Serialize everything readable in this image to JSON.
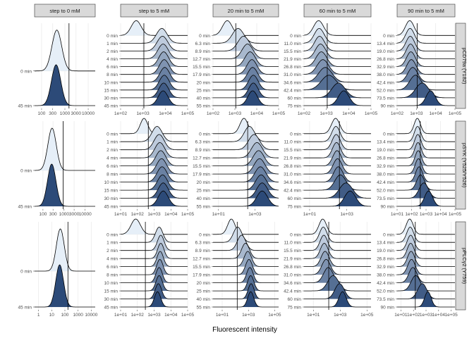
{
  "chart_data": {
    "type": "ridgeline",
    "xlabel": "Fluorescent intensity",
    "x_scale": "log10",
    "columns": [
      {
        "id": "c0",
        "title": "step to 0 mM",
        "times": [
          "0 min",
          "45 min"
        ]
      },
      {
        "id": "c1",
        "title": "step to 5 mM",
        "times": [
          "0 min",
          "1 min",
          "2 min",
          "4 min",
          "6 min",
          "8 min",
          "10 min",
          "15 min",
          "30 min",
          "45 min"
        ]
      },
      {
        "id": "c2",
        "title": "20 min to 5 mM",
        "times": [
          "0 min",
          "6.3 min",
          "8.9 min",
          "12.7 min",
          "15.5 min",
          "17.9 min",
          "20 min",
          "25 min",
          "40 min",
          "55 min"
        ]
      },
      {
        "id": "c3",
        "title": "60 min to 5 mM",
        "times": [
          "0 min",
          "11.0 min",
          "15.5 min",
          "21.9 min",
          "26.8 min",
          "31.0 min",
          "34.6 min",
          "42.4 min",
          "60 min",
          "75 min"
        ]
      },
      {
        "id": "c4",
        "title": "90 min to 5 mM",
        "times": [
          "0 min",
          "13.4 min",
          "19.0 min",
          "26.8 min",
          "32.9 min",
          "38.0 min",
          "42.4 min",
          "52.0 min",
          "73.5 min",
          "90 min"
        ]
      }
    ],
    "rows": [
      {
        "strip": "pCD79a (Y182)",
        "panels": [
          {
            "xlim": [
              50,
              20000
            ],
            "ticks": [
              100,
              300,
              1000,
              3000,
              10000
            ],
            "tick_labels": [
              "100",
              "300",
              "1000",
              "3000",
              "10000"
            ],
            "vline": 1500,
            "peaks": [
              {
                "m": 450,
                "s": 0.21
              },
              {
                "m": 420,
                "s": 0.2
              }
            ]
          },
          {
            "xlim": [
              100,
              100000
            ],
            "ticks": [
              100,
              1000,
              10000,
              100000
            ],
            "tick_labels": [
              "1e+02",
              "1e+03",
              "1e+04",
              "1e+05"
            ],
            "vline": 1100,
            "peaks": [
              {
                "m": 500,
                "s": 0.22
              },
              {
                "m": 7000,
                "s": 0.24
              },
              {
                "m": 7500,
                "s": 0.24
              },
              {
                "m": 8000,
                "s": 0.23
              },
              {
                "m": 8500,
                "s": 0.22
              },
              {
                "m": 9000,
                "s": 0.22
              },
              {
                "m": 9500,
                "s": 0.22
              },
              {
                "m": 9000,
                "s": 0.22
              },
              {
                "m": 8500,
                "s": 0.22
              },
              {
                "m": 8000,
                "s": 0.22
              }
            ]
          },
          {
            "xlim": [
              100,
              100000
            ],
            "ticks": [
              100,
              1000,
              10000,
              100000
            ],
            "tick_labels": [
              "1e+02",
              "1e+03",
              "1e+04",
              "1e+05"
            ],
            "vline": 1100,
            "peaks": [
              {
                "m": 450,
                "s": 0.22
              },
              {
                "m": 1400,
                "s": 0.26
              },
              {
                "m": 2500,
                "s": 0.26
              },
              {
                "m": 3800,
                "s": 0.25
              },
              {
                "m": 5000,
                "s": 0.24
              },
              {
                "m": 6000,
                "s": 0.23
              },
              {
                "m": 6500,
                "s": 0.23
              },
              {
                "m": 7000,
                "s": 0.22
              },
              {
                "m": 7000,
                "s": 0.22
              },
              {
                "m": 6500,
                "s": 0.22
              }
            ]
          },
          {
            "xlim": [
              100,
              100000
            ],
            "ticks": [
              100,
              1000,
              10000,
              100000
            ],
            "tick_labels": [
              "1e+02",
              "1e+03",
              "1e+04",
              "1e+05"
            ],
            "vline": 1100,
            "peaks": [
              {
                "m": 450,
                "s": 0.22
              },
              {
                "m": 480,
                "s": 0.22
              },
              {
                "m": 500,
                "s": 0.22
              },
              {
                "m": 550,
                "s": 0.23
              },
              {
                "m": 600,
                "s": 0.24
              },
              {
                "m": 700,
                "s": 0.26
              },
              {
                "m": 900,
                "s": 0.3
              },
              {
                "m": 1300,
                "s": 0.34
              },
              {
                "m": 3500,
                "s": 0.3
              },
              {
                "m": 6000,
                "s": 0.24
              }
            ]
          },
          {
            "xlim": [
              100,
              100000
            ],
            "ticks": [
              100,
              1000,
              10000,
              100000
            ],
            "tick_labels": [
              "1e+02",
              "1e+03",
              "1e+04",
              "1e+05"
            ],
            "vline": 1100,
            "peaks": [
              {
                "m": 450,
                "s": 0.22
              },
              {
                "m": 470,
                "s": 0.22
              },
              {
                "m": 480,
                "s": 0.22
              },
              {
                "m": 500,
                "s": 0.22
              },
              {
                "m": 520,
                "s": 0.23
              },
              {
                "m": 550,
                "s": 0.24
              },
              {
                "m": 650,
                "s": 0.26
              },
              {
                "m": 900,
                "s": 0.3
              },
              {
                "m": 2000,
                "s": 0.34
              },
              {
                "m": 5500,
                "s": 0.24
              }
            ]
          }
        ]
      },
      {
        "strip": "pSYK (Y525/Y526)",
        "panels": [
          {
            "xlim": [
              40,
              30000
            ],
            "ticks": [
              100,
              300,
              1000,
              3000,
              10000
            ],
            "tick_labels": [
              "100",
              "300",
              "1000",
              "3000",
              "10000"
            ],
            "vline": 900,
            "peaks": [
              {
                "m": 270,
                "s": 0.2
              },
              {
                "m": 260,
                "s": 0.2
              }
            ]
          },
          {
            "xlim": [
              10,
              100000
            ],
            "ticks": [
              10,
              100,
              1000,
              10000,
              100000
            ],
            "tick_labels": [
              "1e+01",
              "1e+02",
              "1e+03",
              "1e+04",
              "1e+05"
            ],
            "vline": 450,
            "peaks": [
              {
                "m": 250,
                "s": 0.22
              },
              {
                "m": 1500,
                "s": 0.3
              },
              {
                "m": 2000,
                "s": 0.3
              },
              {
                "m": 2200,
                "s": 0.3
              },
              {
                "m": 2500,
                "s": 0.3
              },
              {
                "m": 2800,
                "s": 0.3
              },
              {
                "m": 3000,
                "s": 0.3
              },
              {
                "m": 3200,
                "s": 0.3
              },
              {
                "m": 3500,
                "s": 0.3
              },
              {
                "m": 3500,
                "s": 0.3
              }
            ]
          },
          {
            "xlim": [
              5,
              20000
            ],
            "ticks": [
              10,
              1000
            ],
            "tick_labels": [
              "1e+01",
              "1e+03"
            ],
            "vline": 400,
            "peaks": [
              {
                "m": 250,
                "s": 0.22
              },
              {
                "m": 500,
                "s": 0.28
              },
              {
                "m": 900,
                "s": 0.3
              },
              {
                "m": 1300,
                "s": 0.3
              },
              {
                "m": 1600,
                "s": 0.3
              },
              {
                "m": 1800,
                "s": 0.3
              },
              {
                "m": 2000,
                "s": 0.3
              },
              {
                "m": 2200,
                "s": 0.3
              },
              {
                "m": 2500,
                "s": 0.3
              },
              {
                "m": 2500,
                "s": 0.3
              }
            ]
          },
          {
            "xlim": [
              5,
              20000
            ],
            "ticks": [
              10,
              1000
            ],
            "tick_labels": [
              "1e+01",
              "1e+03"
            ],
            "vline": 400,
            "peaks": [
              {
                "m": 250,
                "s": 0.22
              },
              {
                "m": 260,
                "s": 0.22
              },
              {
                "m": 270,
                "s": 0.22
              },
              {
                "m": 280,
                "s": 0.22
              },
              {
                "m": 300,
                "s": 0.23
              },
              {
                "m": 320,
                "s": 0.24
              },
              {
                "m": 350,
                "s": 0.25
              },
              {
                "m": 450,
                "s": 0.3
              },
              {
                "m": 900,
                "s": 0.35
              },
              {
                "m": 1500,
                "s": 0.3
              }
            ]
          },
          {
            "xlim": [
              10,
              100000
            ],
            "ticks": [
              10,
              100,
              1000,
              10000,
              100000
            ],
            "tick_labels": [
              "1e+01",
              "1e+02",
              "1e+03",
              "1e+04",
              "1e+05"
            ],
            "vline": 400,
            "peaks": [
              {
                "m": 250,
                "s": 0.22
              },
              {
                "m": 260,
                "s": 0.22
              },
              {
                "m": 270,
                "s": 0.22
              },
              {
                "m": 280,
                "s": 0.22
              },
              {
                "m": 290,
                "s": 0.22
              },
              {
                "m": 300,
                "s": 0.23
              },
              {
                "m": 330,
                "s": 0.24
              },
              {
                "m": 420,
                "s": 0.27
              },
              {
                "m": 700,
                "s": 0.32
              },
              {
                "m": 1500,
                "s": 0.28
              }
            ]
          }
        ]
      },
      {
        "strip": "pPLCγ2 (Y759)",
        "panels": [
          {
            "xlim": [
              0.5,
              20000
            ],
            "ticks": [
              1,
              10,
              100,
              1000,
              10000
            ],
            "tick_labels": [
              "1",
              "10",
              "100",
              "1000",
              "10000"
            ],
            "vline": 170,
            "peaks": [
              {
                "m": 45,
                "s": 0.3
              },
              {
                "m": 40,
                "s": 0.3
              }
            ]
          },
          {
            "xlim": [
              10,
              100000
            ],
            "ticks": [
              10,
              100,
              1000,
              10000,
              100000
            ],
            "tick_labels": [
              "1e+01",
              "1e+02",
              "1e+03",
              "1e+04",
              "1e+05"
            ],
            "vline": 300,
            "peaks": [
              {
                "m": 80,
                "s": 0.28
              },
              {
                "m": 2000,
                "s": 0.22
              },
              {
                "m": 2500,
                "s": 0.2
              },
              {
                "m": 2500,
                "s": 0.19
              },
              {
                "m": 2300,
                "s": 0.19
              },
              {
                "m": 2200,
                "s": 0.19
              },
              {
                "m": 2000,
                "s": 0.19
              },
              {
                "m": 2000,
                "s": 0.19
              },
              {
                "m": 1800,
                "s": 0.19
              },
              {
                "m": 1600,
                "s": 0.19
              }
            ]
          },
          {
            "xlim": [
              2,
              200000
            ],
            "ticks": [
              10,
              1000,
              100000
            ],
            "tick_labels": [
              "1e+01",
              "1e+03",
              "1e+05"
            ],
            "vline": 140,
            "peaks": [
              {
                "m": 50,
                "s": 0.28
              },
              {
                "m": 150,
                "s": 0.32
              },
              {
                "m": 300,
                "s": 0.32
              },
              {
                "m": 600,
                "s": 0.3
              },
              {
                "m": 900,
                "s": 0.28
              },
              {
                "m": 1100,
                "s": 0.26
              },
              {
                "m": 1300,
                "s": 0.25
              },
              {
                "m": 1500,
                "s": 0.24
              },
              {
                "m": 1600,
                "s": 0.23
              },
              {
                "m": 1500,
                "s": 0.23
              }
            ]
          },
          {
            "xlim": [
              2,
              200000
            ],
            "ticks": [
              10,
              1000,
              100000
            ],
            "tick_labels": [
              "1e+01",
              "1e+03",
              "1e+05"
            ],
            "vline": 140,
            "peaks": [
              {
                "m": 50,
                "s": 0.28
              },
              {
                "m": 55,
                "s": 0.28
              },
              {
                "m": 60,
                "s": 0.28
              },
              {
                "m": 65,
                "s": 0.29
              },
              {
                "m": 75,
                "s": 0.3
              },
              {
                "m": 90,
                "s": 0.32
              },
              {
                "m": 130,
                "s": 0.35
              },
              {
                "m": 300,
                "s": 0.4
              },
              {
                "m": 900,
                "s": 0.35
              },
              {
                "m": 1500,
                "s": 0.27
              }
            ]
          },
          {
            "xlim": [
              5,
              200000
            ],
            "ticks": [
              10,
              100,
              1000,
              10000,
              100000
            ],
            "tick_labels": [
              "1e+01",
              "1e+02",
              "1e+03",
              "1e+04",
              "1e+05"
            ],
            "vline": 140,
            "peaks": [
              {
                "m": 50,
                "s": 0.28
              },
              {
                "m": 55,
                "s": 0.28
              },
              {
                "m": 60,
                "s": 0.28
              },
              {
                "m": 60,
                "s": 0.28
              },
              {
                "m": 65,
                "s": 0.29
              },
              {
                "m": 70,
                "s": 0.3
              },
              {
                "m": 90,
                "s": 0.32
              },
              {
                "m": 150,
                "s": 0.36
              },
              {
                "m": 500,
                "s": 0.36
              },
              {
                "m": 1400,
                "s": 0.26
              }
            ]
          }
        ]
      }
    ],
    "colors": {
      "first_fill": "#e6eff8",
      "last_fill": "#2c4a78",
      "line": "#000000",
      "grid": "#ebebeb",
      "strip_bg": "#d9d9d9",
      "strip_border": "#333333",
      "axis_text": "#4d4d4d"
    }
  }
}
